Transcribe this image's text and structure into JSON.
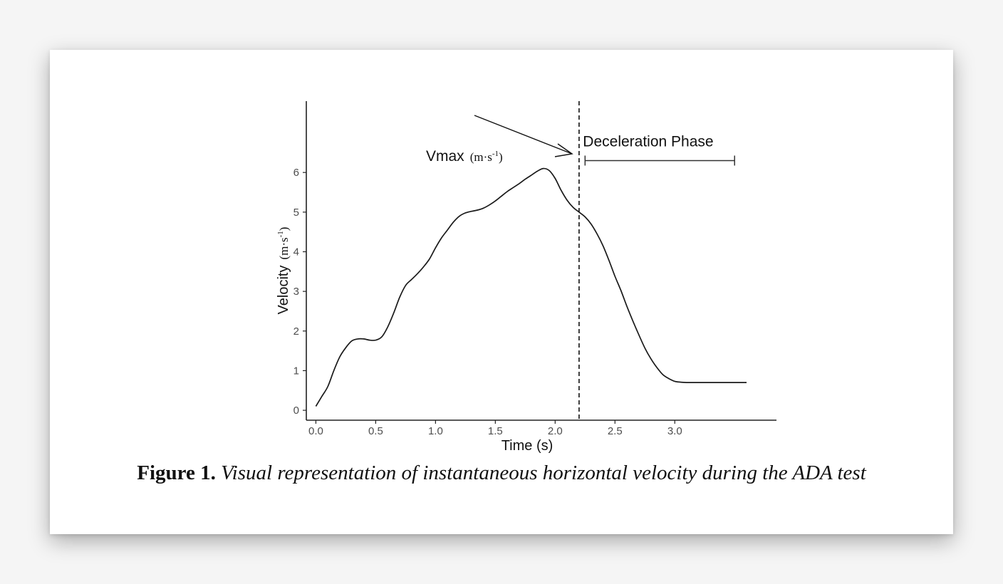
{
  "figure": {
    "label": "Figure 1.",
    "description": "Visual representation of instantaneous horizontal velocity during the ADA test"
  },
  "chart_data": {
    "type": "line",
    "xlabel": "Time (s)",
    "ylabel_main": "Velocity",
    "ylabel_unit": {
      "base": "(m·s",
      "sup": "-1",
      "close": ")"
    },
    "xlim": [
      -0.08,
      3.85
    ],
    "ylim": [
      -0.25,
      7.8
    ],
    "x_ticks": [
      0.0,
      0.5,
      1.0,
      1.5,
      2.0,
      2.5,
      3.0
    ],
    "x_tick_labels": [
      "0.0",
      "0.5",
      "1.0",
      "1.5",
      "2.0",
      "2.5",
      "3.0"
    ],
    "y_ticks": [
      0,
      1,
      2,
      3,
      4,
      5,
      6
    ],
    "y_tick_labels": [
      "0",
      "1",
      "2",
      "3",
      "4",
      "5",
      "6"
    ],
    "series": [
      {
        "x": [
          0.0,
          0.05,
          0.1,
          0.15,
          0.2,
          0.25,
          0.3,
          0.35,
          0.4,
          0.45,
          0.5,
          0.55,
          0.6,
          0.65,
          0.7,
          0.75,
          0.8,
          0.85,
          0.9,
          0.95,
          1.0,
          1.05,
          1.1,
          1.15,
          1.2,
          1.25,
          1.3,
          1.35,
          1.4,
          1.45,
          1.5,
          1.55,
          1.6,
          1.65,
          1.7,
          1.75,
          1.8,
          1.85,
          1.9,
          1.95,
          2.0,
          2.05,
          2.1,
          2.15,
          2.2,
          2.25,
          2.3,
          2.35,
          2.4,
          2.45,
          2.5,
          2.55,
          2.6,
          2.65,
          2.7,
          2.75,
          2.8,
          2.85,
          2.9,
          2.95,
          3.0,
          3.05,
          3.1,
          3.15,
          3.2,
          3.25,
          3.3,
          3.35,
          3.4,
          3.45,
          3.5,
          3.55,
          3.6
        ],
        "y": [
          0.1,
          0.35,
          0.6,
          1.0,
          1.35,
          1.58,
          1.75,
          1.8,
          1.8,
          1.77,
          1.77,
          1.85,
          2.1,
          2.45,
          2.85,
          3.15,
          3.3,
          3.45,
          3.62,
          3.82,
          4.1,
          4.35,
          4.55,
          4.75,
          4.9,
          4.98,
          5.02,
          5.05,
          5.1,
          5.18,
          5.28,
          5.4,
          5.52,
          5.62,
          5.72,
          5.83,
          5.93,
          6.03,
          6.1,
          6.05,
          5.85,
          5.55,
          5.3,
          5.12,
          5.0,
          4.88,
          4.7,
          4.45,
          4.15,
          3.78,
          3.38,
          3.02,
          2.62,
          2.25,
          1.9,
          1.57,
          1.3,
          1.08,
          0.9,
          0.8,
          0.73,
          0.71,
          0.7,
          0.7,
          0.7,
          0.7,
          0.7,
          0.7,
          0.7,
          0.7,
          0.7,
          0.7,
          0.7
        ]
      }
    ],
    "vline_x": 2.2,
    "annotations": {
      "vmax_text": "Vmax",
      "vmax_unit": {
        "base": "(m·s",
        "sup": "-1",
        "close": ")"
      },
      "decel_text": "Deceleration Phase",
      "decel_range_x": [
        2.25,
        3.5
      ],
      "decel_bracket_y": 6.3
    }
  }
}
